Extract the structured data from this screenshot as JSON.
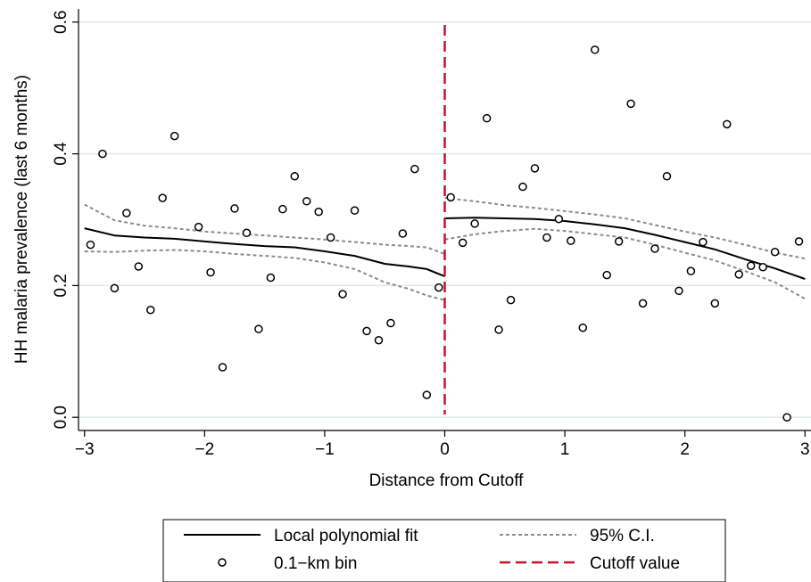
{
  "chart_data": {
    "type": "scatter",
    "xlabel": "Distance from Cutoff",
    "ylabel": "HH malaria prevalence (last 6 months)",
    "xlim": [
      -3.05,
      3.05
    ],
    "ylim": [
      -0.02,
      0.62
    ],
    "xticks": [
      -3,
      -2,
      -1,
      0,
      1,
      2,
      3
    ],
    "xtick_labels": [
      "−3",
      "−2",
      "−1",
      "0",
      "1",
      "2",
      "3"
    ],
    "yticks": [
      0.0,
      0.2,
      0.4,
      0.6
    ],
    "ytick_labels": [
      "0.0",
      "0.2",
      "0.4",
      "0.6"
    ],
    "grid": "horizontal",
    "cutoff": 0,
    "colors": {
      "fit": "#000000",
      "ci": "#8c8c8c",
      "cutoff": "#c8102e",
      "bin": "#000000",
      "grid": "#dfe8ea"
    },
    "legend": {
      "placement": "bottom",
      "entries": [
        {
          "key": "fit",
          "label": "Local polynomial fit"
        },
        {
          "key": "ci",
          "label": "95% C.I."
        },
        {
          "key": "bin",
          "label": "0.1−km bin"
        },
        {
          "key": "cutoff",
          "label": "Cutoff value"
        }
      ]
    },
    "bins": [
      {
        "x": -2.95,
        "y": 0.262
      },
      {
        "x": -2.85,
        "y": 0.4
      },
      {
        "x": -2.75,
        "y": 0.196
      },
      {
        "x": -2.65,
        "y": 0.31
      },
      {
        "x": -2.55,
        "y": 0.229
      },
      {
        "x": -2.45,
        "y": 0.163
      },
      {
        "x": -2.35,
        "y": 0.333
      },
      {
        "x": -2.25,
        "y": 0.427
      },
      {
        "x": -2.05,
        "y": 0.289
      },
      {
        "x": -1.95,
        "y": 0.22
      },
      {
        "x": -1.85,
        "y": 0.076
      },
      {
        "x": -1.75,
        "y": 0.317
      },
      {
        "x": -1.65,
        "y": 0.28
      },
      {
        "x": -1.55,
        "y": 0.134
      },
      {
        "x": -1.45,
        "y": 0.212
      },
      {
        "x": -1.35,
        "y": 0.316
      },
      {
        "x": -1.25,
        "y": 0.366
      },
      {
        "x": -1.15,
        "y": 0.328
      },
      {
        "x": -1.05,
        "y": 0.312
      },
      {
        "x": -0.95,
        "y": 0.273
      },
      {
        "x": -0.85,
        "y": 0.187
      },
      {
        "x": -0.75,
        "y": 0.314
      },
      {
        "x": -0.65,
        "y": 0.131
      },
      {
        "x": -0.55,
        "y": 0.117
      },
      {
        "x": -0.45,
        "y": 0.143
      },
      {
        "x": -0.35,
        "y": 0.279
      },
      {
        "x": -0.25,
        "y": 0.377
      },
      {
        "x": -0.15,
        "y": 0.034
      },
      {
        "x": -0.05,
        "y": 0.197
      },
      {
        "x": 0.05,
        "y": 0.334
      },
      {
        "x": 0.15,
        "y": 0.265
      },
      {
        "x": 0.25,
        "y": 0.294
      },
      {
        "x": 0.35,
        "y": 0.454
      },
      {
        "x": 0.45,
        "y": 0.133
      },
      {
        "x": 0.55,
        "y": 0.178
      },
      {
        "x": 0.65,
        "y": 0.35
      },
      {
        "x": 0.75,
        "y": 0.378
      },
      {
        "x": 0.85,
        "y": 0.273
      },
      {
        "x": 0.95,
        "y": 0.301
      },
      {
        "x": 1.05,
        "y": 0.268
      },
      {
        "x": 1.15,
        "y": 0.136
      },
      {
        "x": 1.25,
        "y": 0.558
      },
      {
        "x": 1.35,
        "y": 0.216
      },
      {
        "x": 1.45,
        "y": 0.267
      },
      {
        "x": 1.55,
        "y": 0.476
      },
      {
        "x": 1.65,
        "y": 0.173
      },
      {
        "x": 1.75,
        "y": 0.256
      },
      {
        "x": 1.85,
        "y": 0.366
      },
      {
        "x": 1.95,
        "y": 0.192
      },
      {
        "x": 2.05,
        "y": 0.222
      },
      {
        "x": 2.15,
        "y": 0.266
      },
      {
        "x": 2.25,
        "y": 0.173
      },
      {
        "x": 2.35,
        "y": 0.445
      },
      {
        "x": 2.45,
        "y": 0.217
      },
      {
        "x": 2.55,
        "y": 0.23
      },
      {
        "x": 2.65,
        "y": 0.228
      },
      {
        "x": 2.75,
        "y": 0.251
      },
      {
        "x": 2.85,
        "y": 0.0
      },
      {
        "x": 2.95,
        "y": 0.267
      }
    ],
    "fit_left": {
      "x": [
        -3.0,
        -2.75,
        -2.5,
        -2.25,
        -2.0,
        -1.75,
        -1.5,
        -1.25,
        -1.0,
        -0.75,
        -0.5,
        -0.3,
        -0.15,
        0.0
      ],
      "y": [
        0.287,
        0.276,
        0.273,
        0.271,
        0.267,
        0.263,
        0.26,
        0.258,
        0.252,
        0.245,
        0.233,
        0.229,
        0.225,
        0.214
      ],
      "lo": [
        0.252,
        0.251,
        0.253,
        0.254,
        0.252,
        0.248,
        0.245,
        0.242,
        0.235,
        0.225,
        0.205,
        0.195,
        0.185,
        0.178
      ],
      "hi": [
        0.323,
        0.299,
        0.291,
        0.287,
        0.282,
        0.279,
        0.276,
        0.273,
        0.27,
        0.266,
        0.262,
        0.26,
        0.258,
        0.248
      ]
    },
    "fit_right": {
      "x": [
        0.0,
        0.25,
        0.5,
        0.75,
        1.0,
        1.25,
        1.5,
        1.75,
        2.0,
        2.25,
        2.5,
        2.75,
        3.0
      ],
      "y": [
        0.302,
        0.303,
        0.302,
        0.301,
        0.298,
        0.293,
        0.287,
        0.277,
        0.266,
        0.255,
        0.24,
        0.226,
        0.21
      ],
      "lo": [
        0.27,
        0.278,
        0.283,
        0.286,
        0.283,
        0.278,
        0.273,
        0.262,
        0.25,
        0.238,
        0.222,
        0.205,
        0.18
      ],
      "hi": [
        0.333,
        0.328,
        0.322,
        0.318,
        0.313,
        0.308,
        0.302,
        0.292,
        0.282,
        0.273,
        0.262,
        0.25,
        0.241
      ]
    }
  }
}
